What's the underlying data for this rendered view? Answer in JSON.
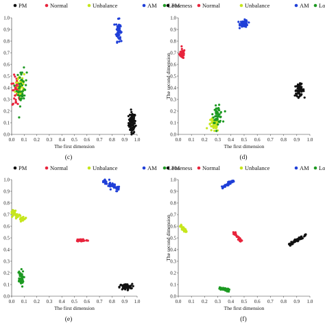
{
  "legend": [
    {
      "name": "PM",
      "color": "#111111"
    },
    {
      "name": "Normal",
      "color": "#e8243c"
    },
    {
      "name": "Unbalance",
      "color": "#c6e61c"
    },
    {
      "name": "AM",
      "color": "#1f3fd8"
    },
    {
      "name": "Looseness",
      "color": "#1d9a22"
    }
  ],
  "chart_data": [
    {
      "panel": "(c)",
      "type": "scatter",
      "xlabel": "The first dimension",
      "ylabel": "",
      "xlim": [
        0,
        1
      ],
      "ylim": [
        0,
        1
      ],
      "xticks": [
        "0.0",
        "0.1",
        "0.2",
        "0.3",
        "0.4",
        "0.5",
        "0.6",
        "0.7",
        "0.8",
        "0.9",
        "1.0"
      ],
      "yticks": [
        "0.0",
        "0.1",
        "0.2",
        "0.3",
        "0.4",
        "0.5",
        "0.6",
        "0.7",
        "0.8",
        "0.9",
        "1.0"
      ],
      "legend_position": "top",
      "series": [
        {
          "name": "PM",
          "center": [
            0.96,
            0.1
          ],
          "spread": [
            0.028,
            0.09
          ],
          "n": 80,
          "shape": "blob"
        },
        {
          "name": "Normal",
          "center": [
            0.04,
            0.36
          ],
          "spread": [
            0.035,
            0.14
          ],
          "n": 45,
          "shape": "blob"
        },
        {
          "name": "Unbalance",
          "center": [
            0.07,
            0.42
          ],
          "spread": [
            0.04,
            0.13
          ],
          "n": 45,
          "shape": "blob"
        },
        {
          "name": "AM",
          "center": [
            0.85,
            0.89
          ],
          "spread": [
            0.018,
            0.09
          ],
          "n": 60,
          "shape": "blob"
        },
        {
          "name": "Looseness",
          "center": [
            0.08,
            0.4
          ],
          "spread": [
            0.04,
            0.15
          ],
          "n": 45,
          "shape": "blob"
        }
      ]
    },
    {
      "panel": "(d)",
      "type": "scatter",
      "xlabel": "The first dimension",
      "ylabel": "The second dimension",
      "xlim": [
        0,
        1
      ],
      "ylim": [
        0,
        1
      ],
      "xticks": [
        "0.0",
        "0.1",
        "0.2",
        "0.3",
        "0.4",
        "0.5",
        "0.6",
        "0.7",
        "0.8",
        "0.9",
        "1.0"
      ],
      "yticks": [
        "0.0",
        "0.1",
        "0.2",
        "0.3",
        "0.4",
        "0.5",
        "0.6",
        "0.7",
        "0.8",
        "0.9",
        "1.0"
      ],
      "legend_position": "top",
      "series": [
        {
          "name": "PM",
          "center": [
            0.92,
            0.38
          ],
          "spread": [
            0.035,
            0.05
          ],
          "n": 60,
          "shape": "blob"
        },
        {
          "name": "Normal",
          "center": [
            0.03,
            0.69
          ],
          "spread": [
            0.02,
            0.04
          ],
          "n": 50,
          "shape": "blob"
        },
        {
          "name": "Unbalance",
          "center": [
            0.27,
            0.08
          ],
          "spread": [
            0.04,
            0.06
          ],
          "n": 50,
          "shape": "blob"
        },
        {
          "name": "AM",
          "center": [
            0.5,
            0.95
          ],
          "spread": [
            0.03,
            0.03
          ],
          "n": 50,
          "shape": "blob"
        },
        {
          "name": "Looseness",
          "center": [
            0.3,
            0.17
          ],
          "spread": [
            0.035,
            0.07
          ],
          "n": 55,
          "shape": "blob"
        }
      ]
    },
    {
      "panel": "(e)",
      "type": "scatter",
      "xlabel": "The first dimension",
      "ylabel": "",
      "xlim": [
        0,
        1
      ],
      "ylim": [
        0,
        1
      ],
      "xticks": [
        "0.0",
        "0.1",
        "0.2",
        "0.3",
        "0.4",
        "0.5",
        "0.6",
        "0.7",
        "0.8",
        "0.9",
        "1.0"
      ],
      "yticks": [
        "0.0",
        "0.1",
        "0.2",
        "0.3",
        "0.4",
        "0.5",
        "0.6",
        "0.7",
        "0.8",
        "0.9",
        "1.0"
      ],
      "legend_position": "top",
      "series": [
        {
          "name": "PM",
          "center": [
            0.91,
            0.08
          ],
          "spread": [
            0.05,
            0.025
          ],
          "n": 70,
          "shape": "blob"
        },
        {
          "name": "Normal",
          "center": [
            0.56,
            0.48
          ],
          "spread": [
            0.045,
            0.012
          ],
          "n": 45,
          "shape": "blob"
        },
        {
          "name": "Unbalance",
          "from": [
            0.0,
            0.73
          ],
          "to": [
            0.1,
            0.65
          ],
          "width": 0.025,
          "n": 50,
          "shape": "band"
        },
        {
          "name": "AM",
          "from": [
            0.73,
            0.99
          ],
          "to": [
            0.86,
            0.93
          ],
          "width": 0.025,
          "n": 50,
          "shape": "band"
        },
        {
          "name": "Looseness",
          "center": [
            0.07,
            0.15
          ],
          "spread": [
            0.025,
            0.07
          ],
          "n": 50,
          "shape": "blob"
        }
      ]
    },
    {
      "panel": "(f)",
      "type": "scatter",
      "xlabel": "The first dimension",
      "ylabel": "The second dimension",
      "xlim": [
        0,
        1
      ],
      "ylim": [
        0,
        1
      ],
      "xticks": [
        "0.0",
        "0.1",
        "0.2",
        "0.3",
        "0.4",
        "0.5",
        "0.6",
        "0.7",
        "0.8",
        "0.9",
        "1.0"
      ],
      "yticks": [
        "0.0",
        "0.1",
        "0.2",
        "0.3",
        "0.4",
        "0.5",
        "0.6",
        "0.7",
        "0.8",
        "0.9",
        "1.0"
      ],
      "legend_position": "top",
      "series": [
        {
          "name": "PM",
          "from": [
            0.84,
            0.44
          ],
          "to": [
            0.98,
            0.53
          ],
          "width": 0.012,
          "n": 60,
          "shape": "band"
        },
        {
          "name": "Normal",
          "from": [
            0.42,
            0.55
          ],
          "to": [
            0.48,
            0.47
          ],
          "width": 0.01,
          "n": 40,
          "shape": "band"
        },
        {
          "name": "Unbalance",
          "from": [
            0.01,
            0.61
          ],
          "to": [
            0.06,
            0.55
          ],
          "width": 0.012,
          "n": 40,
          "shape": "band"
        },
        {
          "name": "AM",
          "from": [
            0.33,
            0.93
          ],
          "to": [
            0.42,
            0.99
          ],
          "width": 0.012,
          "n": 40,
          "shape": "band"
        },
        {
          "name": "Looseness",
          "from": [
            0.31,
            0.07
          ],
          "to": [
            0.39,
            0.05
          ],
          "width": 0.01,
          "n": 40,
          "shape": "band"
        }
      ]
    }
  ]
}
